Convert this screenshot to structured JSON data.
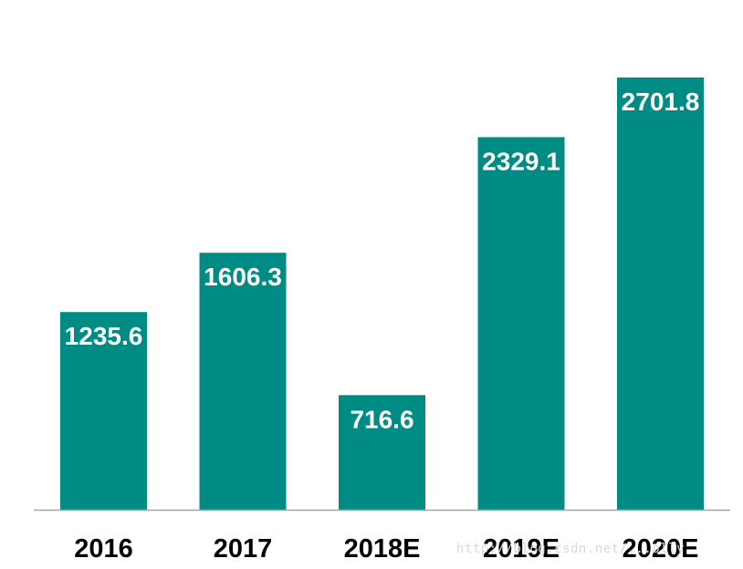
{
  "chart_data": {
    "type": "bar",
    "categories": [
      "2016",
      "2017",
      "2018E",
      "2019E",
      "2020E"
    ],
    "values": [
      1235.6,
      1606.3,
      716.6,
      2329.1,
      2701.8
    ],
    "value_labels": [
      "1235.6",
      "1606.3",
      "716.6",
      "2329.1",
      "2701.8"
    ],
    "title": "",
    "xlabel": "",
    "ylabel": "",
    "grid": false,
    "legend": "none",
    "bar_color": "#008B84",
    "axis_color": "#a6a6a6"
  },
  "watermark": "http://blog.csdn.net/...olly"
}
